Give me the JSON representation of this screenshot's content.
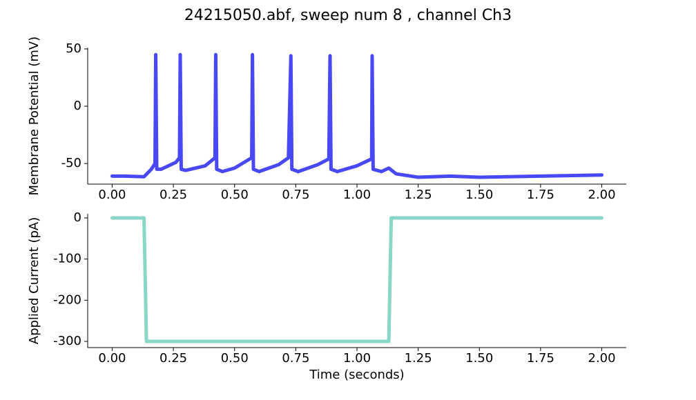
{
  "chart_data": [
    {
      "type": "line",
      "title": "24215050.abf, sweep num 8 , channel Ch3",
      "y_label": "Membrane Potential (mV)",
      "x": [
        0.0,
        0.05,
        0.13,
        0.16,
        0.175,
        0.178,
        0.182,
        0.2,
        0.26,
        0.275,
        0.278,
        0.282,
        0.3,
        0.38,
        0.42,
        0.423,
        0.427,
        0.45,
        0.5,
        0.57,
        0.573,
        0.577,
        0.6,
        0.68,
        0.72,
        0.73,
        0.734,
        0.76,
        0.84,
        0.885,
        0.89,
        0.894,
        0.92,
        1.0,
        1.06,
        1.062,
        1.066,
        1.1,
        1.13,
        1.16,
        1.25,
        1.38,
        1.5,
        2.0
      ],
      "series": [
        {
          "color": "#4848f5",
          "values": [
            -61,
            -61,
            -61.5,
            -55,
            -50,
            45,
            -55,
            -55,
            -49,
            -45,
            45,
            -55,
            -56,
            -52,
            -45,
            45,
            -55,
            -57,
            -54,
            -45,
            45,
            -55,
            -57,
            -51,
            -45,
            44,
            -55,
            -57,
            -51,
            -46,
            44,
            -55,
            -57,
            -52,
            -46,
            44,
            -55,
            -57,
            -54,
            -59,
            -62,
            -61,
            -62,
            -60
          ]
        }
      ],
      "xlim": [
        -0.1,
        2.1
      ],
      "ylim": [
        -68,
        51
      ],
      "xticks": [
        {
          "value": 0,
          "label": "0.00"
        },
        {
          "value": 0.25,
          "label": "0.25"
        },
        {
          "value": 0.5,
          "label": "0.50"
        },
        {
          "value": 0.75,
          "label": "0.75"
        },
        {
          "value": 1,
          "label": "1.00"
        },
        {
          "value": 1.25,
          "label": "1.25"
        },
        {
          "value": 1.5,
          "label": "1.50"
        },
        {
          "value": 1.75,
          "label": "1.75"
        },
        {
          "value": 2,
          "label": "2.00"
        }
      ],
      "yticks": [
        -50,
        0,
        50
      ]
    },
    {
      "type": "line",
      "x_label": "Time (seconds)",
      "y_label": "Applied Current (pA)",
      "x": [
        0.0,
        0.13,
        0.14,
        1.13,
        1.14,
        2.0
      ],
      "series": [
        {
          "color": "#88d7c7",
          "values": [
            0,
            0,
            -300,
            -300,
            0,
            0
          ]
        }
      ],
      "xlim": [
        -0.1,
        2.1
      ],
      "ylim": [
        -315,
        10
      ],
      "xticks": [
        {
          "value": 0,
          "label": "0.00"
        },
        {
          "value": 0.25,
          "label": "0.25"
        },
        {
          "value": 0.5,
          "label": "0.50"
        },
        {
          "value": 0.75,
          "label": "0.75"
        },
        {
          "value": 1,
          "label": "1.00"
        },
        {
          "value": 1.25,
          "label": "1.25"
        },
        {
          "value": 1.5,
          "label": "1.50"
        },
        {
          "value": 1.75,
          "label": "1.75"
        },
        {
          "value": 2,
          "label": "2.00"
        }
      ],
      "yticks": [
        -300,
        -200,
        -100,
        0
      ]
    }
  ]
}
